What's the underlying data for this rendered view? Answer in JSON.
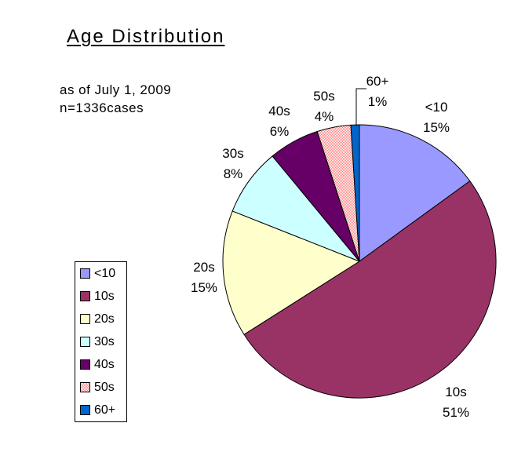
{
  "title": "Age Distribution",
  "subtitle": {
    "line1": "as of July 1, 2009",
    "line2": "n=1336cases"
  },
  "chart_data": {
    "type": "pie",
    "title": "Age Distribution",
    "annotations": [
      "as of July 1, 2009",
      "n=1336cases"
    ],
    "categories": [
      "<10",
      "10s",
      "20s",
      "30s",
      "40s",
      "50s",
      "60+"
    ],
    "values": [
      15,
      51,
      15,
      8,
      6,
      4,
      1
    ],
    "unit": "%",
    "colors": [
      "#9999FF",
      "#993366",
      "#FFFFCC",
      "#CCFFFF",
      "#660066",
      "#FF8080",
      "#0066CC"
    ],
    "pattern_slices": [
      5
    ],
    "start_angle_deg": 0,
    "direction": "clockwise",
    "legend_position": "left",
    "slice_border_color": "#000000",
    "label_color": "#000000",
    "background_color": "#FFFFFF"
  }
}
